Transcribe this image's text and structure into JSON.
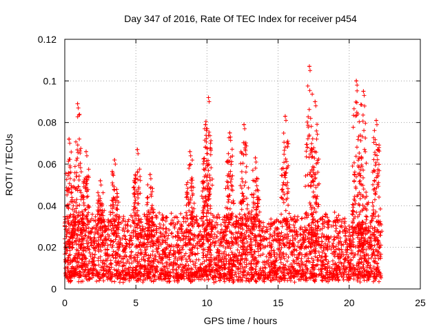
{
  "chart_data": {
    "type": "scatter",
    "title": "Day 347 of 2016, Rate Of TEC Index for receiver p454",
    "xlabel": "GPS time / hours",
    "ylabel": "ROTI / TECUs",
    "xlim": [
      0,
      25
    ],
    "ylim": [
      0,
      0.12
    ],
    "x_ticks": [
      "0",
      "5",
      "10",
      "15",
      "20",
      "25"
    ],
    "y_ticks": [
      "0",
      "0.02",
      "0.04",
      "0.06",
      "0.08",
      "0.1",
      "0.12"
    ],
    "x_tick_values": [
      0,
      5,
      10,
      15,
      20,
      25
    ],
    "y_tick_values": [
      0,
      0.02,
      0.04,
      0.06,
      0.08,
      0.1,
      0.12
    ],
    "grid": true,
    "marker": "+",
    "color": "#ff0000",
    "series": [
      {
        "name": "ROTI",
        "x_range": [
          0,
          22.3
        ],
        "typical_range": [
          0.005,
          0.025
        ],
        "peaks": [
          {
            "x": 0.3,
            "y": 0.072
          },
          {
            "x": 0.9,
            "y": 0.089
          },
          {
            "x": 1.5,
            "y": 0.066
          },
          {
            "x": 2.5,
            "y": 0.052
          },
          {
            "x": 3.5,
            "y": 0.062
          },
          {
            "x": 5.1,
            "y": 0.067
          },
          {
            "x": 6.0,
            "y": 0.055
          },
          {
            "x": 8.8,
            "y": 0.066
          },
          {
            "x": 9.9,
            "y": 0.079
          },
          {
            "x": 10.1,
            "y": 0.092
          },
          {
            "x": 11.6,
            "y": 0.075
          },
          {
            "x": 12.6,
            "y": 0.079
          },
          {
            "x": 13.4,
            "y": 0.063
          },
          {
            "x": 15.5,
            "y": 0.083
          },
          {
            "x": 17.2,
            "y": 0.107
          },
          {
            "x": 17.6,
            "y": 0.09
          },
          {
            "x": 20.5,
            "y": 0.1
          },
          {
            "x": 21.0,
            "y": 0.095
          },
          {
            "x": 21.9,
            "y": 0.081
          }
        ]
      }
    ]
  }
}
